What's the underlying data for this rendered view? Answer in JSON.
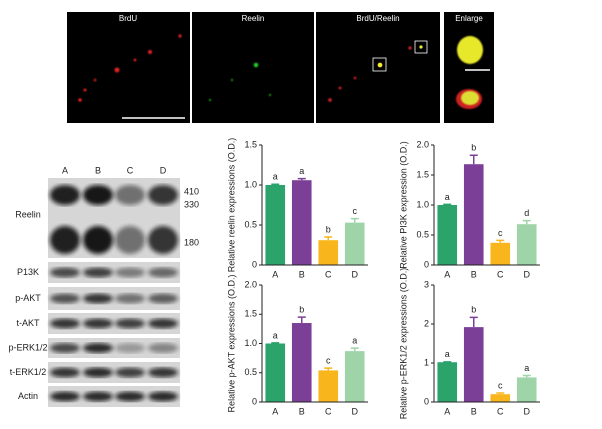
{
  "micrographs": {
    "panels": [
      "BrdU",
      "Reelin",
      "BrdU/Reelin",
      "Enlarge"
    ]
  },
  "western_blot": {
    "lanes": [
      "A",
      "B",
      "C",
      "D"
    ],
    "rows": [
      "Reelin",
      "P13K",
      "p-AKT",
      "t-AKT",
      "p-ERK1/2",
      "t-ERK1/2",
      "Actin"
    ],
    "markers": [
      "410",
      "330",
      "180"
    ]
  },
  "chart_data": [
    {
      "type": "bar",
      "y_label": "Relative reelin expressions (O.D.)",
      "categories": [
        "A",
        "B",
        "C",
        "D"
      ],
      "values": [
        1.0,
        1.06,
        0.31,
        0.53
      ],
      "errors": [
        0.01,
        0.02,
        0.04,
        0.05
      ],
      "letters": [
        "a",
        "a",
        "b",
        "c"
      ],
      "colors": [
        "#2ba36b",
        "#7c3f98",
        "#f8b51c",
        "#9fd4a9"
      ],
      "ylim": [
        0,
        1.5
      ],
      "yticks": [
        0,
        0.5,
        {
          "value": 1,
          "label": "1.0"
        },
        1.5
      ]
    },
    {
      "type": "bar",
      "y_label": "Relative PI3K expression (O.D.)",
      "categories": [
        "A",
        "B",
        "C",
        "D"
      ],
      "values": [
        1.0,
        1.68,
        0.37,
        0.68
      ],
      "errors": [
        0.01,
        0.15,
        0.04,
        0.06
      ],
      "letters": [
        "a",
        "b",
        "c",
        "d"
      ],
      "colors": [
        "#2ba36b",
        "#7c3f98",
        "#f8b51c",
        "#9fd4a9"
      ],
      "ylim": [
        0,
        2
      ],
      "yticks": [
        0,
        0.5,
        {
          "value": 1,
          "label": "1.0"
        },
        1.5,
        {
          "value": 2,
          "label": "2.0"
        }
      ]
    },
    {
      "type": "bar",
      "y_label": "Relative p-AKT expressions (O.D.)",
      "categories": [
        "A",
        "B",
        "C",
        "D"
      ],
      "values": [
        1.0,
        1.35,
        0.54,
        0.87
      ],
      "errors": [
        0.01,
        0.1,
        0.04,
        0.05
      ],
      "letters": [
        "a",
        "b",
        "c",
        "a"
      ],
      "colors": [
        "#2ba36b",
        "#7c3f98",
        "#f8b51c",
        "#9fd4a9"
      ],
      "ylim": [
        0,
        2
      ],
      "yticks": [
        0,
        0.5,
        {
          "value": 1,
          "label": "1.0"
        },
        1.5,
        {
          "value": 2,
          "label": "2.0"
        }
      ]
    },
    {
      "type": "bar",
      "y_label": "Relative p-ERK1/2 expressions (O.D.)",
      "categories": [
        "A",
        "B",
        "C",
        "D"
      ],
      "values": [
        1.02,
        1.92,
        0.2,
        0.63
      ],
      "errors": [
        0.01,
        0.25,
        0.03,
        0.05
      ],
      "letters": [
        "a",
        "b",
        "c",
        "a"
      ],
      "colors": [
        "#2ba36b",
        "#7c3f98",
        "#f8b51c",
        "#9fd4a9"
      ],
      "ylim": [
        0,
        3
      ],
      "yticks": [
        0,
        1,
        2,
        3
      ]
    }
  ]
}
